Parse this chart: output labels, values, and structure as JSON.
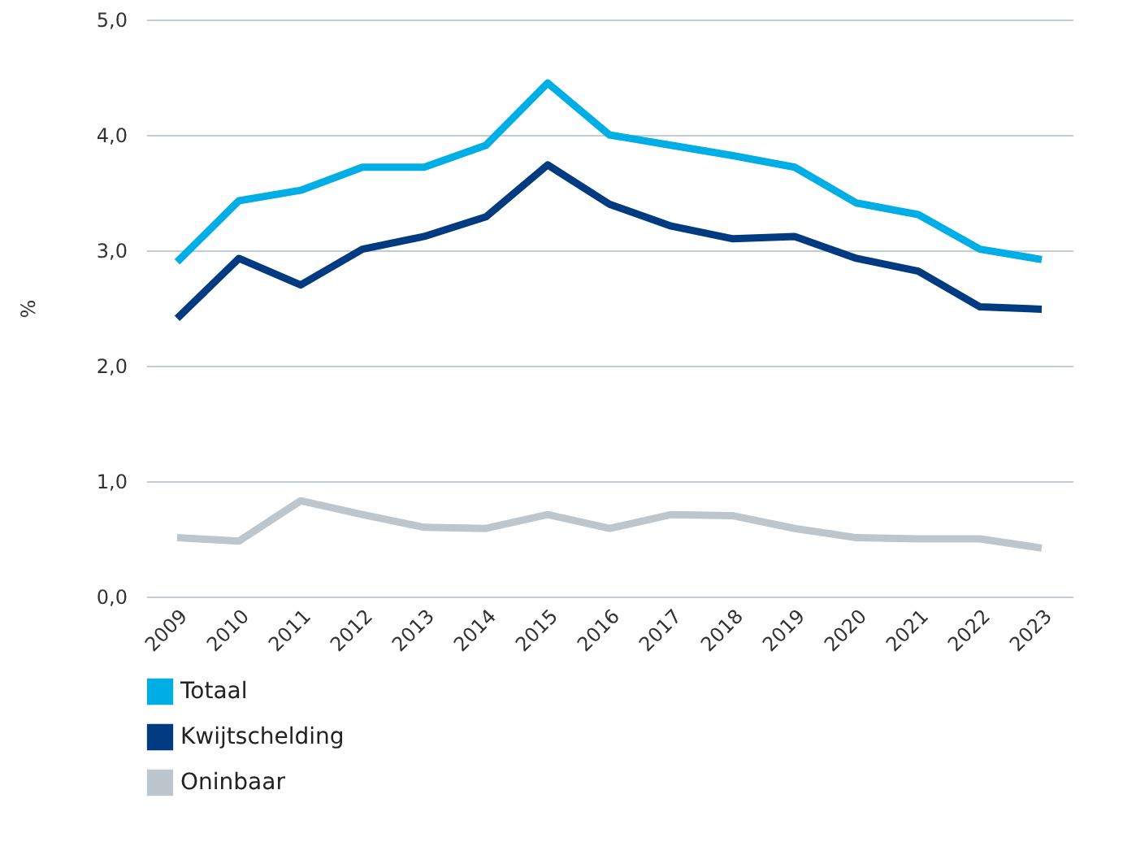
{
  "chart_data": {
    "type": "line",
    "ylabel": "%",
    "categories": [
      "2009",
      "2010",
      "2011",
      "2012",
      "2013",
      "2014",
      "2015",
      "2016",
      "2017",
      "2018",
      "2019",
      "2020",
      "2021",
      "2022",
      "2023"
    ],
    "series": [
      {
        "name": "Totaal",
        "color": "#00aee6",
        "values": [
          2.9,
          3.43,
          3.52,
          3.72,
          3.72,
          3.91,
          4.45,
          4.0,
          3.91,
          3.82,
          3.72,
          3.41,
          3.31,
          3.01,
          2.92
        ]
      },
      {
        "name": "Kwijtschelding",
        "color": "#003b82",
        "values": [
          2.41,
          2.93,
          2.7,
          3.01,
          3.12,
          3.29,
          3.74,
          3.4,
          3.21,
          3.1,
          3.12,
          2.93,
          2.82,
          2.51,
          2.49
        ]
      },
      {
        "name": "Oninbaar",
        "color": "#bcc6cc",
        "values": [
          0.51,
          0.48,
          0.83,
          0.71,
          0.6,
          0.59,
          0.71,
          0.59,
          0.71,
          0.7,
          0.59,
          0.51,
          0.5,
          0.5,
          0.42
        ]
      }
    ],
    "ylim": [
      0,
      5
    ],
    "yticks": [
      {
        "value": 0,
        "label": "0,0"
      },
      {
        "value": 1,
        "label": "1,0"
      },
      {
        "value": 2,
        "label": "2,0"
      },
      {
        "value": 3,
        "label": "3,0"
      },
      {
        "value": 4,
        "label": "4,0"
      },
      {
        "value": 5,
        "label": "5,0"
      }
    ],
    "grid": "y",
    "legend": "bottom",
    "marker": "none",
    "line_style": "solid"
  }
}
